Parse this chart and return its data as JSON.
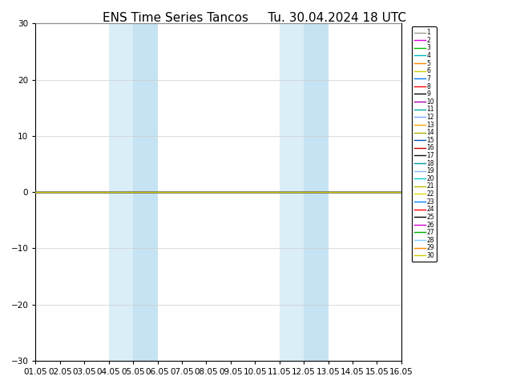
{
  "title_left": "ENS Time Series Tancos",
  "title_right": "Tu. 30.04.2024 18 UTC",
  "ylim": [
    -30,
    30
  ],
  "yticks": [
    -30,
    -20,
    -10,
    0,
    10,
    20,
    30
  ],
  "xtick_labels": [
    "01.05",
    "02.05",
    "03.05",
    "04.05",
    "05.05",
    "06.05",
    "07.05",
    "08.05",
    "09.05",
    "10.05",
    "11.05",
    "12.05",
    "13.05",
    "14.05",
    "15.05",
    "16.05"
  ],
  "xtick_positions": [
    0,
    1,
    2,
    3,
    4,
    5,
    6,
    7,
    8,
    9,
    10,
    11,
    12,
    13,
    14,
    15
  ],
  "shaded_bands": [
    {
      "xmin": 3,
      "xmax": 5,
      "color": "#daeef8"
    },
    {
      "xmin": 10,
      "xmax": 12,
      "color": "#daeef8"
    }
  ],
  "shaded_inner_bands": [
    {
      "xmin": 4,
      "xmax": 5,
      "color": "#c5e3f2"
    },
    {
      "xmin": 11,
      "xmax": 12,
      "color": "#c5e3f2"
    }
  ],
  "num_members": 30,
  "member_colors": [
    "#999999",
    "#dd00dd",
    "#00bb00",
    "#00bbbb",
    "#ff8800",
    "#cccc00",
    "#0077ee",
    "#ff0000",
    "#000000",
    "#aa00aa",
    "#00aaaa",
    "#77aaff",
    "#ffaa00",
    "#aaaa00",
    "#0055bb",
    "#cc0000",
    "#111111",
    "#009999",
    "#88bbff",
    "#00cccc",
    "#bbbb00",
    "#dddd00",
    "#0088ff",
    "#ff0000",
    "#000000",
    "#cc00cc",
    "#00aa00",
    "#88ccff",
    "#ff8800",
    "#cccc00"
  ],
  "member_value": 0,
  "background_color": "#ffffff",
  "title_fontsize": 11,
  "tick_fontsize": 7.5,
  "legend_fontsize": 5.5,
  "grid_color": "#cccccc",
  "line_width": 0.8
}
